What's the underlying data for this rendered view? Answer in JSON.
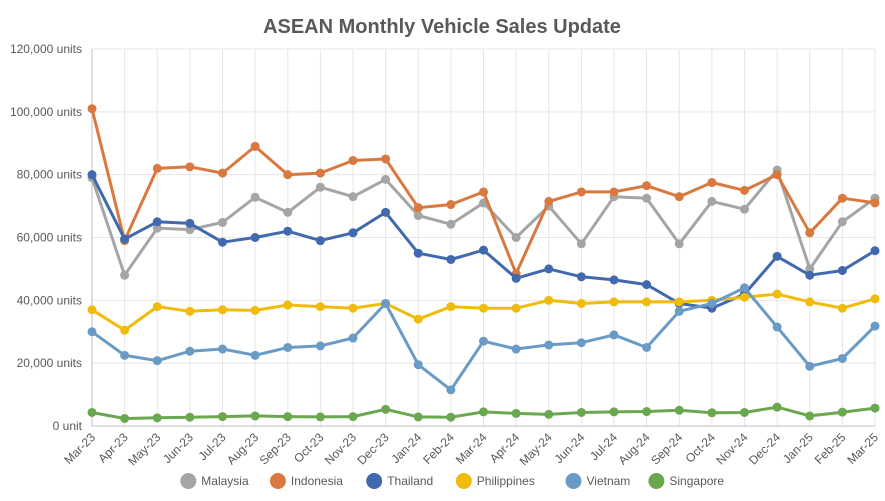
{
  "chart_data": {
    "type": "line",
    "title": "ASEAN Monthly Vehicle Sales Update",
    "xlabel": "",
    "ylabel": "",
    "ylim": [
      0,
      120000
    ],
    "yticks": [
      0,
      20000,
      40000,
      60000,
      80000,
      100000,
      120000
    ],
    "ytick_labels": [
      "0 unit",
      "20,000 units",
      "40,000 units",
      "60,000 units",
      "80,000 units",
      "100,000 units",
      "120,000 units"
    ],
    "grid": true,
    "legend_position": "bottom",
    "categories": [
      "Mar-23",
      "Apr-23",
      "May-23",
      "Jun-23",
      "Jul-23",
      "Aug-23",
      "Sep-23",
      "Oct-23",
      "Nov-23",
      "Dec-23",
      "Jan-24",
      "Feb-24",
      "Mar-24",
      "Apr-24",
      "May-24",
      "Jun-24",
      "Jul-24",
      "Aug-24",
      "Sep-24",
      "Oct-24",
      "Nov-24",
      "Dec-24",
      "Jan-25",
      "Feb-25",
      "Mar-25"
    ],
    "series": [
      {
        "name": "Malaysia",
        "color": "#a5a5a5",
        "values": [
          79000,
          48000,
          63000,
          62500,
          64800,
          72800,
          68000,
          76000,
          73000,
          78500,
          67000,
          64200,
          71000,
          60000,
          70000,
          58000,
          73000,
          72500,
          58000,
          71500,
          69000,
          81500,
          50000,
          65000,
          72500
        ]
      },
      {
        "name": "Indonesia",
        "color": "#d9793f",
        "values": [
          101000,
          59000,
          82000,
          82500,
          80500,
          89000,
          80000,
          80500,
          84500,
          85000,
          69500,
          70500,
          74500,
          48500,
          71500,
          74500,
          74500,
          76500,
          73000,
          77500,
          75000,
          80000,
          61500,
          72500,
          71000
        ]
      },
      {
        "name": "Thailand",
        "color": "#4169ad",
        "values": [
          80000,
          59500,
          65000,
          64500,
          58500,
          60000,
          62000,
          59000,
          61500,
          68000,
          55000,
          53000,
          56000,
          47000,
          50000,
          47500,
          46500,
          45000,
          39000,
          37500,
          42000,
          54000,
          48000,
          49500,
          55800
        ]
      },
      {
        "name": "Philippines",
        "color": "#f0bb0a",
        "values": [
          37000,
          30500,
          38000,
          36500,
          37000,
          36800,
          38500,
          38000,
          37500,
          39000,
          34000,
          38000,
          37500,
          37500,
          40000,
          39000,
          39500,
          39500,
          39500,
          40000,
          41000,
          42000,
          39500,
          37500,
          40500
        ]
      },
      {
        "name": "Vietnam",
        "color": "#6a9bc6",
        "values": [
          30000,
          22500,
          20800,
          23800,
          24500,
          22500,
          25000,
          25500,
          28000,
          39000,
          19500,
          11500,
          27000,
          24500,
          25800,
          26500,
          29000,
          25000,
          36500,
          39000,
          44000,
          31500,
          19000,
          21500,
          31800
        ]
      },
      {
        "name": "Singapore",
        "color": "#6aa84f",
        "values": [
          4300,
          2400,
          2600,
          2800,
          3000,
          3200,
          3000,
          2900,
          3000,
          5300,
          2900,
          2800,
          4500,
          4000,
          3700,
          4300,
          4500,
          4600,
          5000,
          4200,
          4300,
          6000,
          3200,
          4400,
          5700
        ]
      }
    ]
  }
}
